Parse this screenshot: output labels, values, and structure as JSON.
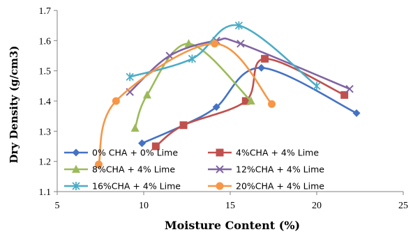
{
  "chart_data": {
    "type": "scatter",
    "title": "",
    "xlabel": "Moisture Content (%)",
    "ylabel": "Dry Density (g/cm3)",
    "xlim": [
      5,
      25
    ],
    "ylim": [
      1.1,
      1.7
    ],
    "xticks": [
      5,
      10,
      15,
      20,
      25
    ],
    "yticks": [
      1.1,
      1.2,
      1.3,
      1.4,
      1.5,
      1.6,
      1.7
    ],
    "grid": false,
    "lines": "smooth",
    "legend_position": "bottom-inside",
    "series": [
      {
        "name": "0% CHA + 0% Lime",
        "color": "#4472C4",
        "marker": "diamond",
        "points": [
          [
            9.9,
            1.26
          ],
          [
            12.3,
            1.32
          ],
          [
            14.2,
            1.38
          ],
          [
            16.8,
            1.51
          ],
          [
            22.3,
            1.36
          ]
        ]
      },
      {
        "name": "4%CHA + 4% Lime",
        "color": "#C0504D",
        "marker": "square",
        "points": [
          [
            10.7,
            1.25
          ],
          [
            12.3,
            1.32
          ],
          [
            15.9,
            1.4
          ],
          [
            17.0,
            1.54
          ],
          [
            21.6,
            1.42
          ]
        ]
      },
      {
        "name": "8%CHA + 4% Lime",
        "color": "#9BBB59",
        "marker": "triangle",
        "points": [
          [
            9.5,
            1.31
          ],
          [
            10.2,
            1.42
          ],
          [
            12.6,
            1.59
          ],
          [
            16.2,
            1.4
          ]
        ]
      },
      {
        "name": "12%CHA + 4% Lime",
        "color": "#8064A2",
        "marker": "x",
        "points": [
          [
            9.2,
            1.43
          ],
          [
            11.5,
            1.55
          ],
          [
            14.2,
            1.6
          ],
          [
            15.6,
            1.59
          ],
          [
            21.9,
            1.44
          ]
        ]
      },
      {
        "name": "16%CHA + 4% Lime",
        "color": "#4BACC6",
        "marker": "star",
        "points": [
          [
            9.2,
            1.48
          ],
          [
            12.8,
            1.54
          ],
          [
            15.5,
            1.65
          ],
          [
            20.0,
            1.45
          ]
        ]
      },
      {
        "name": "20%CHA + 4% Lime",
        "color": "#F79646",
        "marker": "circle",
        "points": [
          [
            7.4,
            1.19
          ],
          [
            8.4,
            1.4
          ],
          [
            14.1,
            1.59
          ],
          [
            17.4,
            1.39
          ]
        ]
      }
    ]
  }
}
